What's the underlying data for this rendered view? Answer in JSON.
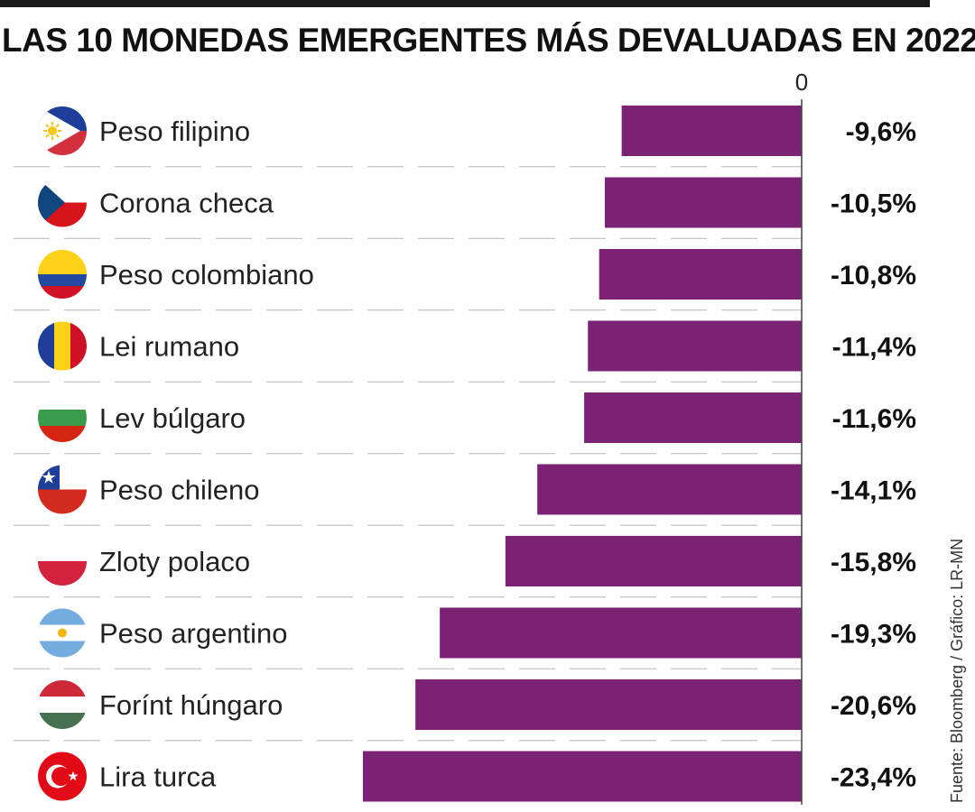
{
  "title": "LAS 10 MONEDAS EMERGENTES MÁS DEVALUADAS EN 2022",
  "source": "Fuente: Bloomberg / Gráfico: LR-MN",
  "chart_data": {
    "type": "bar",
    "orientation": "horizontal",
    "categories": [
      "Peso filipino",
      "Corona checa",
      "Peso colombiano",
      "Lei rumano",
      "Lev búlgaro",
      "Peso chileno",
      "Zloty polaco",
      "Peso argentino",
      "Forínt húngaro",
      "Lira turca"
    ],
    "values": [
      -9.6,
      -10.5,
      -10.8,
      -11.4,
      -11.6,
      -14.1,
      -15.8,
      -19.3,
      -20.6,
      -23.4
    ],
    "value_labels": [
      "-9,6%",
      "-10,5%",
      "-10,8%",
      "-11,4%",
      "-11,6%",
      "-14,1%",
      "-15,8%",
      "-19,3%",
      "-20,6%",
      "-23,4%"
    ],
    "zero_tick": "0",
    "xlim": [
      -23.4,
      0
    ],
    "bar_color": "#7b2274",
    "grid": "dashed row separators",
    "flag_icons": [
      "philippines-flag-icon",
      "czech-flag-icon",
      "colombia-flag-icon",
      "romania-flag-icon",
      "bulgaria-flag-icon",
      "chile-flag-icon",
      "poland-flag-icon",
      "argentina-flag-icon",
      "hungary-flag-icon",
      "turkey-flag-icon"
    ]
  }
}
